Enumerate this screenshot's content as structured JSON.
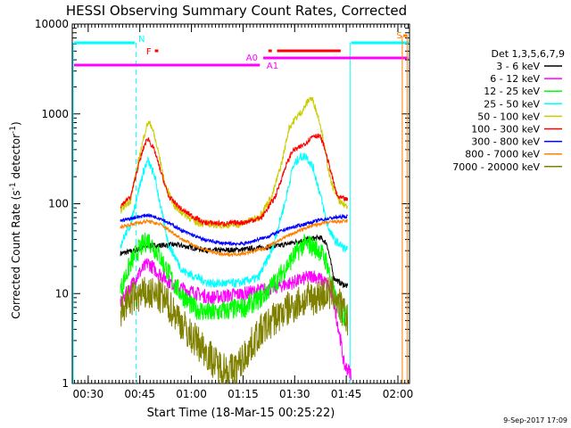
{
  "chart_data": {
    "type": "line",
    "title": "HESSI Observing Summary Count Rates, Corrected",
    "xlabel": "Start Time (18-Mar-15 00:25:22)",
    "ylabel_main": "Corrected Count Rate (s",
    "ylabel_sup1": "-1",
    "ylabel_mid": " detector",
    "ylabel_sup2": "-1",
    "ylabel_end": ")",
    "y_scale": "log",
    "ylim": [
      1,
      10000
    ],
    "xlim_minutes": [
      0,
      98
    ],
    "x_ticks": [
      {
        "m": 4.63,
        "label": "00:30"
      },
      {
        "m": 19.63,
        "label": "00:45"
      },
      {
        "m": 34.63,
        "label": "01:00"
      },
      {
        "m": 49.63,
        "label": "01:15"
      },
      {
        "m": 64.63,
        "label": "01:30"
      },
      {
        "m": 79.63,
        "label": "01:45"
      },
      {
        "m": 94.63,
        "label": "02:00"
      }
    ],
    "y_ticks": [
      {
        "v": 1,
        "label": "1"
      },
      {
        "v": 10,
        "label": "10"
      },
      {
        "v": 100,
        "label": "100"
      },
      {
        "v": 1000,
        "label": "1000"
      },
      {
        "v": 10000,
        "label": "10000"
      }
    ],
    "legend_title": "Det 1,3,5,6,7,9",
    "legend_position": "right",
    "series": [
      {
        "name": "3 - 6 keV",
        "color": "#000000",
        "points": [
          [
            14,
            28
          ],
          [
            18,
            30
          ],
          [
            22,
            34
          ],
          [
            30,
            35
          ],
          [
            40,
            30
          ],
          [
            50,
            31
          ],
          [
            60,
            34
          ],
          [
            68,
            40
          ],
          [
            72,
            42
          ],
          [
            74,
            36
          ],
          [
            76,
            15
          ],
          [
            78,
            13
          ],
          [
            80,
            12
          ]
        ]
      },
      {
        "name": "6 - 12 keV",
        "color": "#ff00ff",
        "points": [
          [
            14,
            8
          ],
          [
            17,
            12
          ],
          [
            19,
            16
          ],
          [
            22,
            22
          ],
          [
            25,
            17
          ],
          [
            30,
            12
          ],
          [
            40,
            9
          ],
          [
            50,
            10
          ],
          [
            60,
            12
          ],
          [
            66,
            14
          ],
          [
            70,
            16
          ],
          [
            74,
            13
          ],
          [
            76,
            8
          ],
          [
            78,
            3
          ],
          [
            79,
            1.6
          ],
          [
            81,
            1.3
          ]
        ]
      },
      {
        "name": "12 - 25 keV",
        "color": "#00ff00",
        "points": [
          [
            14,
            11
          ],
          [
            17,
            22
          ],
          [
            19,
            30
          ],
          [
            22,
            40
          ],
          [
            25,
            28
          ],
          [
            30,
            12
          ],
          [
            35,
            7
          ],
          [
            40,
            6
          ],
          [
            45,
            6.5
          ],
          [
            50,
            7
          ],
          [
            55,
            9
          ],
          [
            60,
            15
          ],
          [
            64,
            25
          ],
          [
            67,
            35
          ],
          [
            69,
            35
          ],
          [
            72,
            30
          ],
          [
            74,
            22
          ],
          [
            76,
            10
          ],
          [
            78,
            6
          ],
          [
            80,
            5.5
          ]
        ]
      },
      {
        "name": "25 - 50 keV",
        "color": "#00ffff",
        "points": [
          [
            14,
            35
          ],
          [
            17,
            60
          ],
          [
            19,
            130
          ],
          [
            21,
            250
          ],
          [
            22,
            300
          ],
          [
            24,
            200
          ],
          [
            26,
            80
          ],
          [
            28,
            35
          ],
          [
            32,
            18
          ],
          [
            40,
            13
          ],
          [
            48,
            13
          ],
          [
            54,
            15
          ],
          [
            58,
            30
          ],
          [
            62,
            110
          ],
          [
            64,
            250
          ],
          [
            66,
            330
          ],
          [
            68,
            340
          ],
          [
            70,
            250
          ],
          [
            72,
            130
          ],
          [
            74,
            60
          ],
          [
            76,
            40
          ],
          [
            79,
            32
          ],
          [
            80,
            30
          ]
        ]
      },
      {
        "name": "50 - 100 keV",
        "color": "#cccc00",
        "points": [
          [
            14,
            85
          ],
          [
            17,
            110
          ],
          [
            19,
            270
          ],
          [
            21,
            600
          ],
          [
            22,
            800
          ],
          [
            23,
            750
          ],
          [
            25,
            380
          ],
          [
            27,
            160
          ],
          [
            30,
            90
          ],
          [
            36,
            62
          ],
          [
            42,
            58
          ],
          [
            48,
            58
          ],
          [
            54,
            70
          ],
          [
            58,
            120
          ],
          [
            61,
            300
          ],
          [
            63,
            700
          ],
          [
            65,
            900
          ],
          [
            67,
            1100
          ],
          [
            69,
            1500
          ],
          [
            70,
            1400
          ],
          [
            72,
            800
          ],
          [
            73,
            500
          ],
          [
            75,
            180
          ],
          [
            78,
            100
          ],
          [
            80,
            95
          ]
        ]
      },
      {
        "name": "100 - 300 keV",
        "color": "#ff0000",
        "points": [
          [
            14,
            95
          ],
          [
            17,
            120
          ],
          [
            19,
            250
          ],
          [
            21,
            450
          ],
          [
            22,
            540
          ],
          [
            24,
            380
          ],
          [
            26,
            210
          ],
          [
            28,
            120
          ],
          [
            32,
            85
          ],
          [
            38,
            62
          ],
          [
            44,
            60
          ],
          [
            50,
            62
          ],
          [
            55,
            70
          ],
          [
            59,
            120
          ],
          [
            62,
            260
          ],
          [
            64,
            390
          ],
          [
            66,
            420
          ],
          [
            68,
            480
          ],
          [
            70,
            580
          ],
          [
            72,
            560
          ],
          [
            73,
            460
          ],
          [
            75,
            240
          ],
          [
            77,
            120
          ],
          [
            80,
            110
          ]
        ]
      },
      {
        "name": "300 - 800 keV",
        "color": "#0000ff",
        "points": [
          [
            14,
            65
          ],
          [
            18,
            70
          ],
          [
            22,
            75
          ],
          [
            26,
            68
          ],
          [
            32,
            50
          ],
          [
            38,
            40
          ],
          [
            44,
            36
          ],
          [
            50,
            36
          ],
          [
            56,
            42
          ],
          [
            62,
            52
          ],
          [
            68,
            60
          ],
          [
            72,
            66
          ],
          [
            76,
            70
          ],
          [
            80,
            72
          ]
        ]
      },
      {
        "name": "800 - 7000 keV",
        "color": "#ff8000",
        "points": [
          [
            14,
            55
          ],
          [
            18,
            60
          ],
          [
            22,
            64
          ],
          [
            26,
            58
          ],
          [
            32,
            40
          ],
          [
            38,
            31
          ],
          [
            44,
            27
          ],
          [
            50,
            28
          ],
          [
            56,
            32
          ],
          [
            62,
            43
          ],
          [
            68,
            54
          ],
          [
            72,
            60
          ],
          [
            76,
            63
          ],
          [
            80,
            64
          ]
        ]
      },
      {
        "name": "7000 - 20000 keV",
        "color": "#808000",
        "points": [
          [
            14,
            6
          ],
          [
            16,
            8
          ],
          [
            18,
            9
          ],
          [
            22,
            10
          ],
          [
            26,
            9
          ],
          [
            30,
            6
          ],
          [
            34,
            3.5
          ],
          [
            38,
            2.5
          ],
          [
            40,
            2
          ],
          [
            42,
            1.6
          ],
          [
            46,
            1.4
          ],
          [
            48,
            1.5
          ],
          [
            50,
            2
          ],
          [
            54,
            3.5
          ],
          [
            58,
            5
          ],
          [
            62,
            6.5
          ],
          [
            66,
            8
          ],
          [
            70,
            9
          ],
          [
            74,
            10
          ],
          [
            76,
            10
          ],
          [
            78,
            7
          ],
          [
            80,
            5
          ]
        ]
      }
    ],
    "flags": [
      {
        "label": "N",
        "color": "#00ffff"
      },
      {
        "label": "F",
        "color": "#ff0000"
      },
      {
        "label": "A0",
        "color": "#ff00ff"
      },
      {
        "label": "A1",
        "color": "#ff00ff"
      },
      {
        "label": "S",
        "color": "#ff8000"
      }
    ],
    "footer_date": "9-Sep-2017 17:09"
  }
}
